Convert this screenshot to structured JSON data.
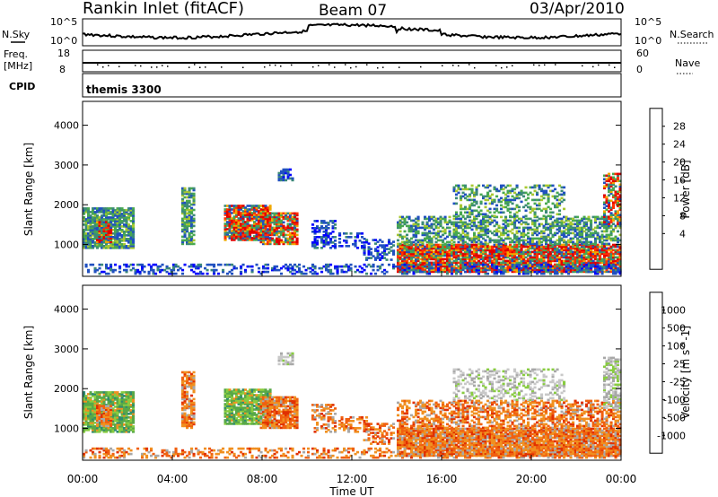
{
  "header": {
    "title": "Rankin Inlet (fitACF)",
    "beam": "Beam 07",
    "date": "03/Apr/2010"
  },
  "strip_nsky": {
    "left_label": "N.Sky",
    "left_ticks": [
      "10^5",
      "10^0"
    ],
    "right_label": "N.Search",
    "right_ticks": [
      "10^5",
      "10^0"
    ]
  },
  "strip_freq": {
    "left_label_1": "Freq.",
    "left_label_2": "[MHz]",
    "left_ticks": [
      "18",
      "8"
    ],
    "right_label": "Nave",
    "right_ticks": [
      "60",
      "0"
    ]
  },
  "cpid": {
    "label": "CPID",
    "value": "themis 3300"
  },
  "chart_data": [
    {
      "type": "heatmap",
      "quantity": "Power",
      "ylabel": "Slant Range [km]",
      "ylim": [
        200,
        4600
      ],
      "yticks": [
        "4000",
        "3000",
        "2000",
        "1000"
      ],
      "xlim_hours": [
        0,
        24
      ],
      "colorbar": {
        "label": "Power [dB]",
        "ticks": [
          "28",
          "24",
          "20",
          "16",
          "12",
          "8",
          "4"
        ],
        "colors": [
          "#0000ff",
          "#2050c0",
          "#3c8a78",
          "#48a850",
          "#a8c830",
          "#f0a800",
          "#ff7000",
          "#ff3000",
          "#e00000"
        ]
      }
    },
    {
      "type": "heatmap",
      "quantity": "Velocity",
      "ylabel": "Slant Range [km]",
      "ylim": [
        200,
        4600
      ],
      "yticks": [
        "4000",
        "3000",
        "2000",
        "1000"
      ],
      "xlabel": "Time UT",
      "xlim_hours": [
        0,
        24
      ],
      "xticks": [
        "00:00",
        "04:00",
        "08:00",
        "12:00",
        "16:00",
        "20:00",
        "00:00"
      ],
      "colorbar": {
        "label": "Velocity [m s^-1]",
        "ticks": [
          "1000",
          "500",
          "100",
          "25",
          "-25",
          "-100",
          "-500",
          "-1000"
        ],
        "colors": [
          "#2040c8",
          "#2e8a70",
          "#58a848",
          "#88cc40",
          "#c8c8c8",
          "#a8a8a8",
          "#f09020",
          "#f06010",
          "#e03000"
        ]
      }
    }
  ]
}
